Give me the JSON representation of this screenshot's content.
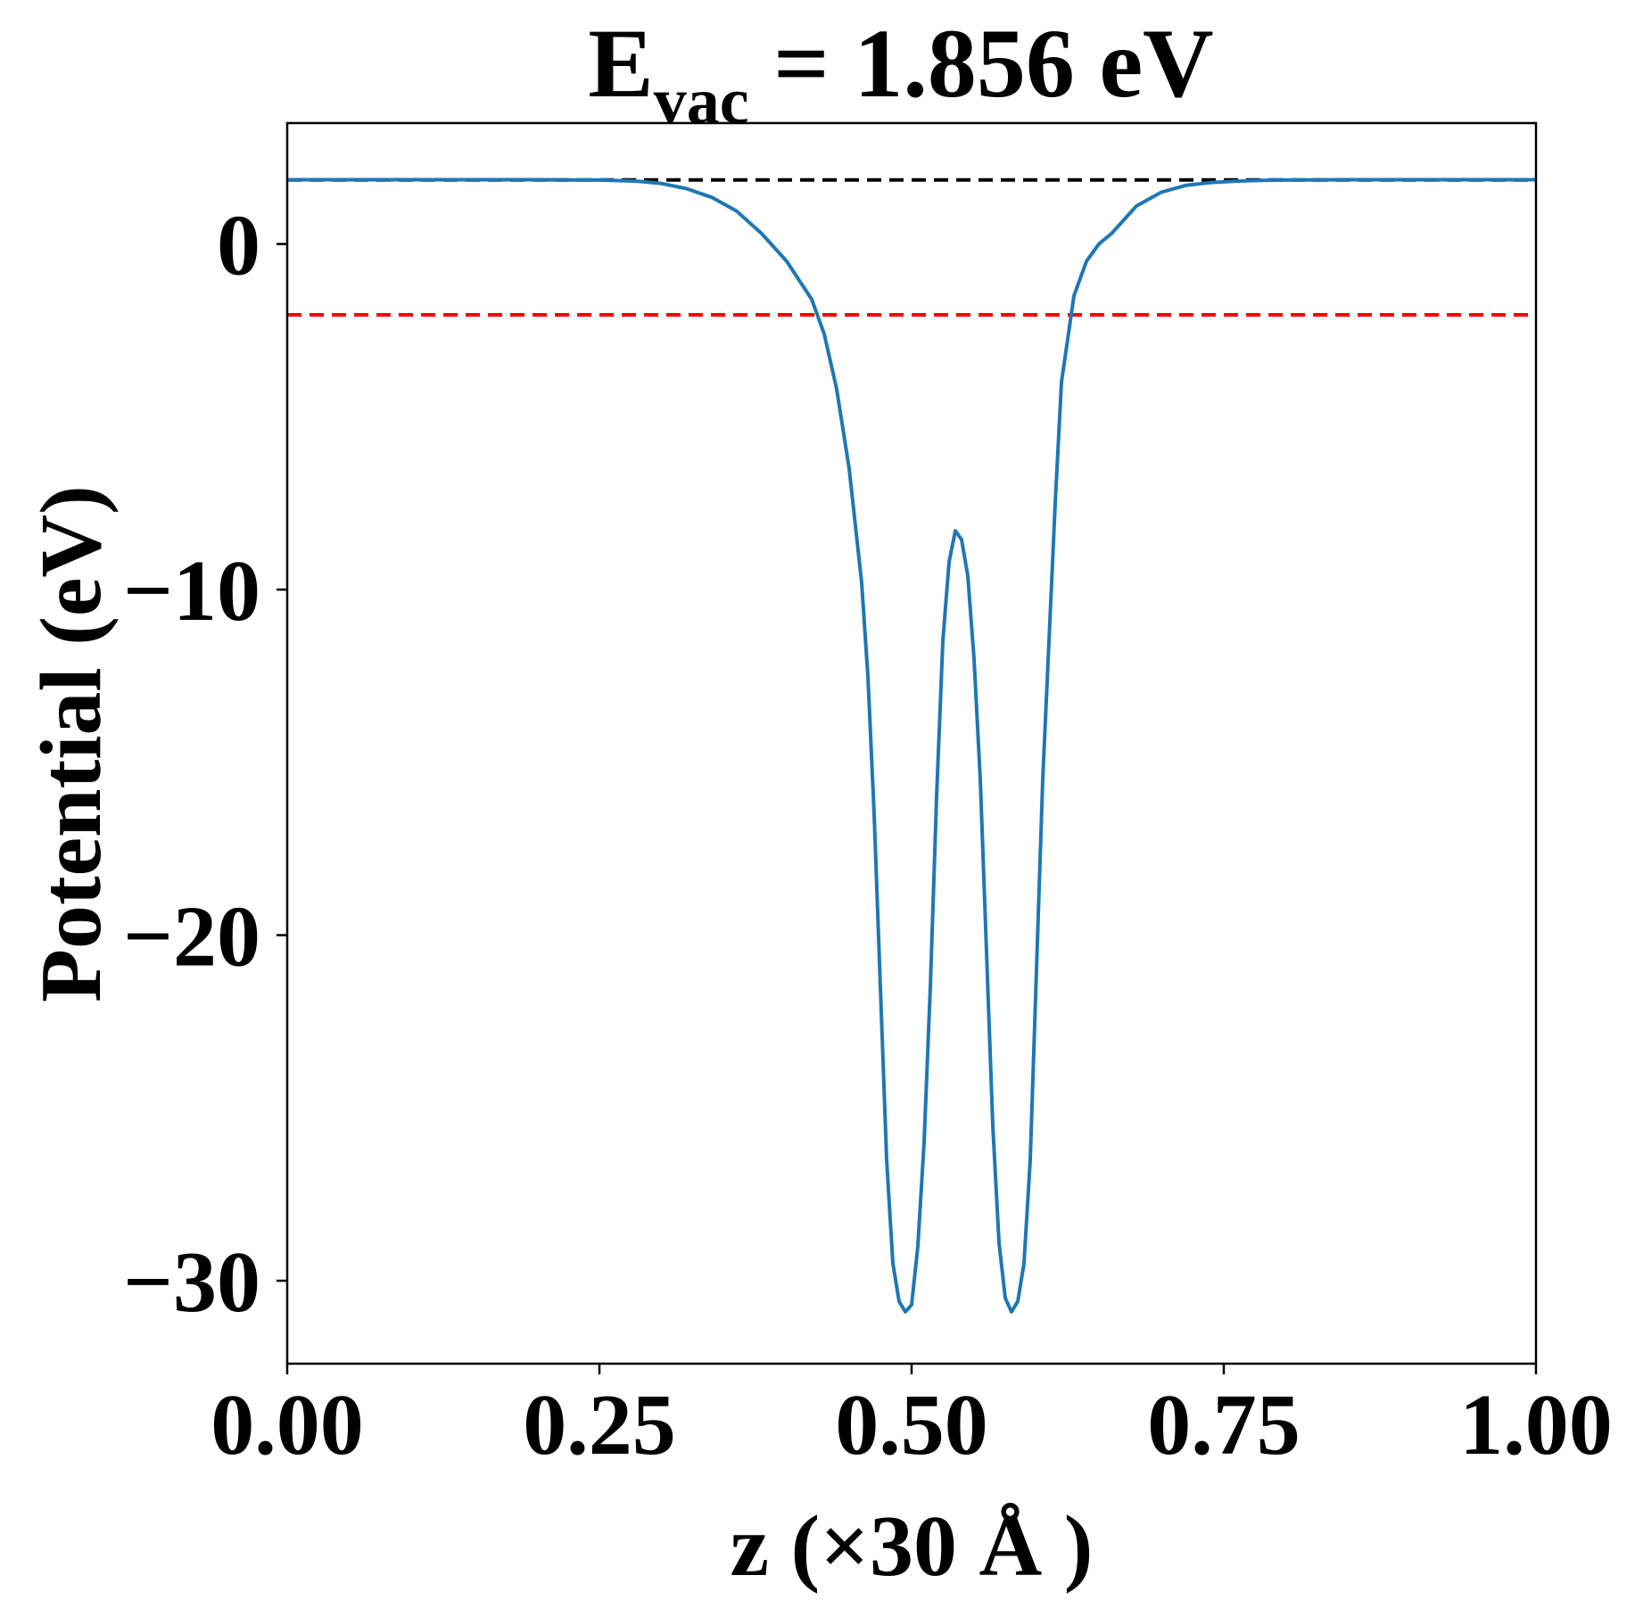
{
  "chart_data": {
    "type": "line",
    "title": {
      "main": "E",
      "subscript": "vac",
      "rest": " = 1.856 eV"
    },
    "xlabel": "z (×30 Å )",
    "ylabel": "Potential (eV)",
    "xlim": [
      0.0,
      1.0
    ],
    "ylim": [
      -32.4,
      3.5
    ],
    "xticks": [
      0.0,
      0.25,
      0.5,
      0.75,
      1.0
    ],
    "xtick_labels": [
      "0.00",
      "0.25",
      "0.50",
      "0.75",
      "1.00"
    ],
    "yticks": [
      0,
      -10,
      -20,
      -30
    ],
    "ytick_labels": [
      "0",
      "−10",
      "−20",
      "−30"
    ],
    "grid": false,
    "series": [
      {
        "color": "#1f77b4",
        "x": [
          0.0,
          0.05,
          0.1,
          0.15,
          0.2,
          0.25,
          0.28,
          0.3,
          0.32,
          0.34,
          0.36,
          0.38,
          0.4,
          0.42,
          0.43,
          0.44,
          0.45,
          0.46,
          0.465,
          0.47,
          0.475,
          0.48,
          0.485,
          0.49,
          0.495,
          0.5,
          0.505,
          0.51,
          0.515,
          0.52,
          0.525,
          0.53,
          0.535,
          0.54,
          0.545,
          0.55,
          0.555,
          0.56,
          0.565,
          0.57,
          0.575,
          0.58,
          0.585,
          0.59,
          0.595,
          0.6,
          0.605,
          0.61,
          0.615,
          0.62,
          0.63,
          0.64,
          0.65,
          0.66,
          0.67,
          0.68,
          0.7,
          0.72,
          0.74,
          0.76,
          0.78,
          0.8,
          0.85,
          0.9,
          0.95,
          1.0
        ],
        "y": [
          1.86,
          1.86,
          1.86,
          1.86,
          1.86,
          1.85,
          1.82,
          1.75,
          1.6,
          1.35,
          0.95,
          0.3,
          -0.5,
          -1.6,
          -2.6,
          -4.2,
          -6.5,
          -9.8,
          -12.5,
          -16.5,
          -21.5,
          -26.5,
          -29.5,
          -30.6,
          -30.9,
          -30.7,
          -29.0,
          -26.0,
          -21.5,
          -16.0,
          -11.5,
          -9.2,
          -8.3,
          -8.55,
          -9.6,
          -12.0,
          -15.5,
          -20.5,
          -25.5,
          -28.9,
          -30.5,
          -30.9,
          -30.6,
          -29.5,
          -26.5,
          -21.0,
          -15.5,
          -11.5,
          -7.5,
          -4.0,
          -1.5,
          -0.5,
          0.0,
          0.3,
          0.7,
          1.1,
          1.5,
          1.7,
          1.78,
          1.82,
          1.84,
          1.85,
          1.86,
          1.86,
          1.86,
          1.86
        ]
      }
    ],
    "reference_lines": [
      {
        "y": 1.856,
        "color": "#000000",
        "style": "dashed"
      },
      {
        "y": -2.05,
        "color": "#ff0000",
        "style": "dashed"
      }
    ]
  }
}
